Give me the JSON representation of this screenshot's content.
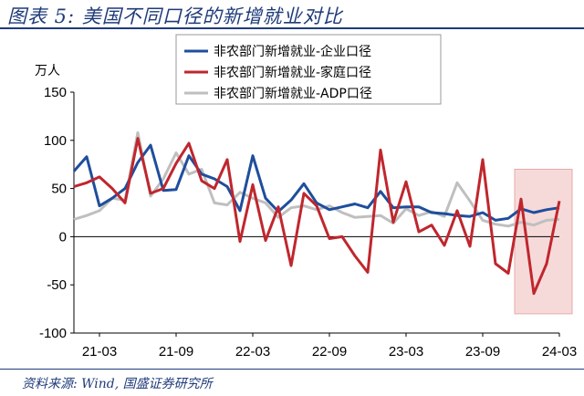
{
  "header": {
    "title": "图表 5:  美国不同口径的新增就业对比"
  },
  "footer": {
    "source": "资料来源: Wind, 国盛证券研究所"
  },
  "colors": {
    "accent": "#1f3b7a",
    "enterprise": "#1f4e9c",
    "household": "#c0262d",
    "adp": "#bfbfbf",
    "highlight": "#f6dada"
  },
  "chart_data": {
    "type": "line",
    "title": "",
    "ylabel": "万人",
    "ylim": [
      -100,
      150
    ],
    "yticks": [
      -100,
      -50,
      0,
      50,
      100,
      150
    ],
    "xticks": [
      "21-03",
      "21-09",
      "22-03",
      "22-09",
      "23-03",
      "23-09",
      "24-03"
    ],
    "x": [
      "21-01",
      "21-02",
      "21-03",
      "21-04",
      "21-05",
      "21-06",
      "21-07",
      "21-08",
      "21-09",
      "21-10",
      "21-11",
      "21-12",
      "22-01",
      "22-02",
      "22-03",
      "22-04",
      "22-05",
      "22-06",
      "22-07",
      "22-08",
      "22-09",
      "22-10",
      "22-11",
      "22-12",
      "23-01",
      "23-02",
      "23-03",
      "23-04",
      "23-05",
      "23-06",
      "23-07",
      "23-08",
      "23-09",
      "23-10",
      "23-11",
      "23-12",
      "24-01",
      "24-02",
      "24-03"
    ],
    "legend_position": "top-right",
    "highlight_range": [
      "23-12",
      "24-03"
    ],
    "series": [
      {
        "name": "非农部门新增就业-企业口径",
        "color": "#1f4e9c",
        "values": [
          68,
          83,
          32,
          40,
          50,
          77,
          95,
          48,
          49,
          84,
          65,
          60,
          52,
          27,
          84,
          40,
          26,
          38,
          55,
          35,
          28,
          31,
          34,
          30,
          47,
          30,
          31,
          31,
          25,
          24,
          22,
          21,
          25,
          17,
          19,
          29,
          25,
          28,
          30
        ]
      },
      {
        "name": "非农部门新增就业-家庭口径",
        "color": "#c0262d",
        "values": [
          52,
          56,
          62,
          50,
          35,
          102,
          45,
          50,
          76,
          97,
          58,
          50,
          80,
          -5,
          54,
          -4,
          31,
          -30,
          45,
          32,
          -2,
          0,
          -20,
          -37,
          90,
          15,
          57,
          5,
          12,
          -9,
          27,
          -10,
          80,
          -28,
          -38,
          39,
          -59,
          -28,
          37
        ]
      },
      {
        "name": "非农部门新增就业-ADP口径",
        "color": "#bfbfbf",
        "values": [
          18,
          22,
          27,
          40,
          38,
          108,
          42,
          60,
          87,
          65,
          70,
          35,
          33,
          46,
          40,
          35,
          20,
          30,
          32,
          28,
          32,
          25,
          20,
          21,
          22,
          14,
          29,
          22,
          26,
          21,
          56,
          37,
          17,
          13,
          11,
          15,
          12,
          17,
          18
        ]
      }
    ]
  }
}
